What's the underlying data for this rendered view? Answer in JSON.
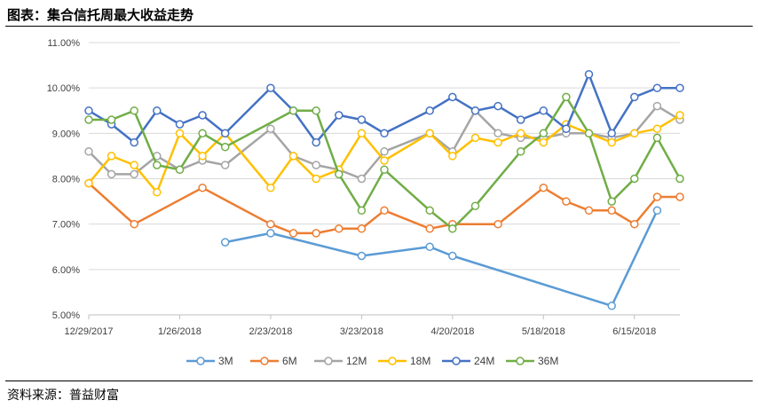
{
  "header": {
    "title": "图表：集合信托周最大收益走势"
  },
  "footer": {
    "source": "资料来源：普益财富"
  },
  "chart_data": {
    "type": "line",
    "title": "图表：集合信托周最大收益走势",
    "xlabel": "",
    "ylabel": "",
    "ylim": [
      5.0,
      11.0
    ],
    "yticks": [
      "5.00%",
      "6.00%",
      "7.00%",
      "8.00%",
      "9.00%",
      "10.00%",
      "11.00%"
    ],
    "ytick_values": [
      5,
      6,
      7,
      8,
      9,
      10,
      11
    ],
    "x_range": [
      "2017-12-29",
      "2018-06-29"
    ],
    "xticks": [
      {
        "label": "12/29/2017",
        "date": "2017-12-29"
      },
      {
        "label": "1/26/2018",
        "date": "2018-01-26"
      },
      {
        "label": "2/23/2018",
        "date": "2018-02-23"
      },
      {
        "label": "3/23/2018",
        "date": "2018-03-23"
      },
      {
        "label": "4/20/2018",
        "date": "2018-04-20"
      },
      {
        "label": "5/18/2018",
        "date": "2018-05-18"
      },
      {
        "label": "6/15/2018",
        "date": "2018-06-15"
      }
    ],
    "grid": "horizontal",
    "legend_position": "bottom",
    "series": [
      {
        "name": "3M",
        "color": "#5B9BD5",
        "points": [
          [
            "2018-02-09",
            6.6
          ],
          [
            "2018-02-23",
            6.8
          ],
          [
            "2018-03-23",
            6.3
          ],
          [
            "2018-04-13",
            6.5
          ],
          [
            "2018-04-20",
            6.3
          ],
          [
            "2018-06-08",
            5.2
          ],
          [
            "2018-06-22",
            7.3
          ]
        ]
      },
      {
        "name": "6M",
        "color": "#ED7D31",
        "points": [
          [
            "2017-12-29",
            7.9
          ],
          [
            "2018-01-12",
            7.0
          ],
          [
            "2018-02-02",
            7.8
          ],
          [
            "2018-02-23",
            7.0
          ],
          [
            "2018-03-02",
            6.8
          ],
          [
            "2018-03-09",
            6.8
          ],
          [
            "2018-03-16",
            6.9
          ],
          [
            "2018-03-23",
            6.9
          ],
          [
            "2018-03-30",
            7.3
          ],
          [
            "2018-04-13",
            6.9
          ],
          [
            "2018-04-20",
            7.0
          ],
          [
            "2018-05-04",
            7.0
          ],
          [
            "2018-05-18",
            7.8
          ],
          [
            "2018-05-25",
            7.5
          ],
          [
            "2018-06-01",
            7.3
          ],
          [
            "2018-06-08",
            7.3
          ],
          [
            "2018-06-15",
            7.0
          ],
          [
            "2018-06-22",
            7.6
          ],
          [
            "2018-06-29",
            7.6
          ]
        ]
      },
      {
        "name": "12M",
        "color": "#A5A5A5",
        "points": [
          [
            "2017-12-29",
            8.6
          ],
          [
            "2018-01-05",
            8.1
          ],
          [
            "2018-01-12",
            8.1
          ],
          [
            "2018-01-19",
            8.5
          ],
          [
            "2018-01-26",
            8.2
          ],
          [
            "2018-02-02",
            8.4
          ],
          [
            "2018-02-09",
            8.3
          ],
          [
            "2018-02-23",
            9.1
          ],
          [
            "2018-03-02",
            8.5
          ],
          [
            "2018-03-09",
            8.3
          ],
          [
            "2018-03-16",
            8.2
          ],
          [
            "2018-03-23",
            8.0
          ],
          [
            "2018-03-30",
            8.6
          ],
          [
            "2018-04-13",
            9.0
          ],
          [
            "2018-04-20",
            8.6
          ],
          [
            "2018-04-27",
            9.5
          ],
          [
            "2018-05-04",
            9.0
          ],
          [
            "2018-05-11",
            8.9
          ],
          [
            "2018-05-18",
            8.9
          ],
          [
            "2018-05-25",
            9.0
          ],
          [
            "2018-06-01",
            9.0
          ],
          [
            "2018-06-08",
            8.9
          ],
          [
            "2018-06-15",
            9.0
          ],
          [
            "2018-06-22",
            9.6
          ],
          [
            "2018-06-29",
            9.3
          ]
        ]
      },
      {
        "name": "18M",
        "color": "#FFC000",
        "points": [
          [
            "2017-12-29",
            7.9
          ],
          [
            "2018-01-05",
            8.5
          ],
          [
            "2018-01-12",
            8.3
          ],
          [
            "2018-01-19",
            7.7
          ],
          [
            "2018-01-26",
            9.0
          ],
          [
            "2018-02-02",
            8.5
          ],
          [
            "2018-02-09",
            9.0
          ],
          [
            "2018-02-23",
            7.8
          ],
          [
            "2018-03-02",
            8.5
          ],
          [
            "2018-03-09",
            8.0
          ],
          [
            "2018-03-16",
            8.2
          ],
          [
            "2018-03-23",
            9.0
          ],
          [
            "2018-03-30",
            8.4
          ],
          [
            "2018-04-13",
            9.0
          ],
          [
            "2018-04-20",
            8.5
          ],
          [
            "2018-04-27",
            8.9
          ],
          [
            "2018-05-04",
            8.8
          ],
          [
            "2018-05-11",
            9.0
          ],
          [
            "2018-05-18",
            8.8
          ],
          [
            "2018-05-25",
            9.2
          ],
          [
            "2018-06-01",
            9.0
          ],
          [
            "2018-06-08",
            8.8
          ],
          [
            "2018-06-15",
            9.0
          ],
          [
            "2018-06-22",
            9.1
          ],
          [
            "2018-06-29",
            9.4
          ]
        ]
      },
      {
        "name": "24M",
        "color": "#4472C4",
        "points": [
          [
            "2017-12-29",
            9.5
          ],
          [
            "2018-01-05",
            9.2
          ],
          [
            "2018-01-12",
            8.8
          ],
          [
            "2018-01-19",
            9.5
          ],
          [
            "2018-01-26",
            9.2
          ],
          [
            "2018-02-02",
            9.4
          ],
          [
            "2018-02-09",
            9.0
          ],
          [
            "2018-02-23",
            10.0
          ],
          [
            "2018-03-02",
            9.5
          ],
          [
            "2018-03-09",
            8.8
          ],
          [
            "2018-03-16",
            9.4
          ],
          [
            "2018-03-23",
            9.3
          ],
          [
            "2018-03-30",
            9.0
          ],
          [
            "2018-04-13",
            9.5
          ],
          [
            "2018-04-20",
            9.8
          ],
          [
            "2018-04-27",
            9.5
          ],
          [
            "2018-05-04",
            9.6
          ],
          [
            "2018-05-11",
            9.3
          ],
          [
            "2018-05-18",
            9.5
          ],
          [
            "2018-05-25",
            9.1
          ],
          [
            "2018-06-01",
            10.3
          ],
          [
            "2018-06-08",
            9.0
          ],
          [
            "2018-06-15",
            9.8
          ],
          [
            "2018-06-22",
            10.0
          ],
          [
            "2018-06-29",
            10.0
          ]
        ]
      },
      {
        "name": "36M",
        "color": "#70AD47",
        "points": [
          [
            "2017-12-29",
            9.3
          ],
          [
            "2018-01-05",
            9.3
          ],
          [
            "2018-01-12",
            9.5
          ],
          [
            "2018-01-19",
            8.3
          ],
          [
            "2018-01-26",
            8.2
          ],
          [
            "2018-02-02",
            9.0
          ],
          [
            "2018-02-09",
            8.7
          ],
          [
            "2018-03-02",
            9.5
          ],
          [
            "2018-03-09",
            9.5
          ],
          [
            "2018-03-16",
            8.1
          ],
          [
            "2018-03-23",
            7.3
          ],
          [
            "2018-03-30",
            8.2
          ],
          [
            "2018-04-13",
            7.3
          ],
          [
            "2018-04-20",
            6.9
          ],
          [
            "2018-04-27",
            7.4
          ],
          [
            "2018-05-11",
            8.6
          ],
          [
            "2018-05-18",
            9.0
          ],
          [
            "2018-05-25",
            9.8
          ],
          [
            "2018-06-01",
            9.0
          ],
          [
            "2018-06-08",
            7.5
          ],
          [
            "2018-06-15",
            8.0
          ],
          [
            "2018-06-22",
            8.9
          ],
          [
            "2018-06-29",
            8.0
          ]
        ]
      }
    ]
  }
}
